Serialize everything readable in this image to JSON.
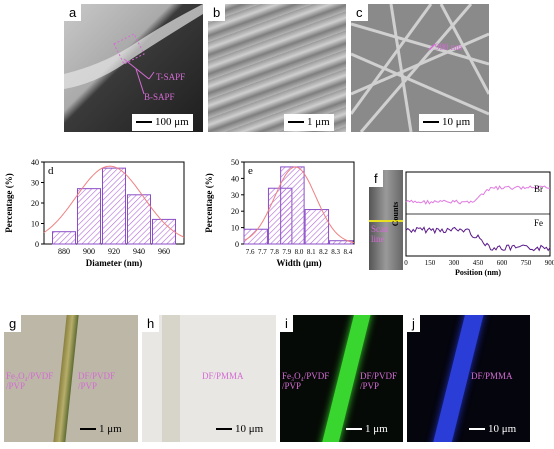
{
  "panels": {
    "a": {
      "label": "a",
      "scale": "100 μm",
      "t_label": "T-SAPF",
      "b_label": "B-SAPF"
    },
    "b": {
      "label": "b",
      "scale": "1 μm"
    },
    "c": {
      "label": "c",
      "scale": "10 μm",
      "measure": "990 nm"
    },
    "d": {
      "label": "d"
    },
    "e": {
      "label": "e"
    },
    "f": {
      "label": "f",
      "scan_line": "Scan line",
      "br": "Br",
      "fe": "Fe",
      "ylabel": "Counts",
      "xlabel": "Position (nm)",
      "xticks": [
        "0",
        "150",
        "300",
        "450",
        "600",
        "750",
        "900"
      ]
    },
    "g": {
      "label": "g",
      "scale": "1 μm",
      "left": "Fe₃O₄/PVDF\n/PVP",
      "right": "DF/PVDF\n/PVP"
    },
    "h": {
      "label": "h",
      "scale": "10 μm",
      "right": "DF/PMMA"
    },
    "i": {
      "label": "i",
      "scale": "1 μm",
      "left": "Fe₃O₄/PVDF\n/PVP",
      "right": "DF/PVDF\n/PVP"
    },
    "j": {
      "label": "j",
      "scale": "10 μm",
      "right": "DF/PMMA"
    }
  },
  "chart_data": [
    {
      "type": "bar",
      "panel": "d",
      "categories": [
        "880",
        "900",
        "920",
        "940",
        "960"
      ],
      "values": [
        6,
        27,
        37,
        24,
        12
      ],
      "xlabel": "Diameter  (nm)",
      "ylabel": "Percentage (%)",
      "ylim": [
        0,
        40
      ],
      "yticks": [
        "0",
        "10",
        "20",
        "30",
        "40"
      ],
      "fit": "gaussian"
    },
    {
      "type": "bar",
      "panel": "e",
      "categories": [
        "7.6",
        "7.7",
        "7.8",
        "7.9",
        "8.0",
        "8.1",
        "8.2",
        "8.3",
        "8.4"
      ],
      "x": [
        7.65,
        7.85,
        7.95,
        8.15,
        8.35
      ],
      "values": [
        9,
        34,
        47,
        21,
        2
      ],
      "xlabel": "Width (μm)",
      "ylabel": "Percentage (%)",
      "ylim": [
        0,
        50
      ],
      "yticks": [
        "0",
        "10",
        "20",
        "30",
        "40",
        "50"
      ],
      "fit": "gaussian"
    }
  ],
  "colors": {
    "accent": "#cc55cc",
    "bar_edge": "#8a4fc7",
    "fit": "#f08080",
    "br_line": "#e07be0",
    "fe_line": "#5a1a8a",
    "green": "#39d62f",
    "blue": "#2233cc"
  }
}
